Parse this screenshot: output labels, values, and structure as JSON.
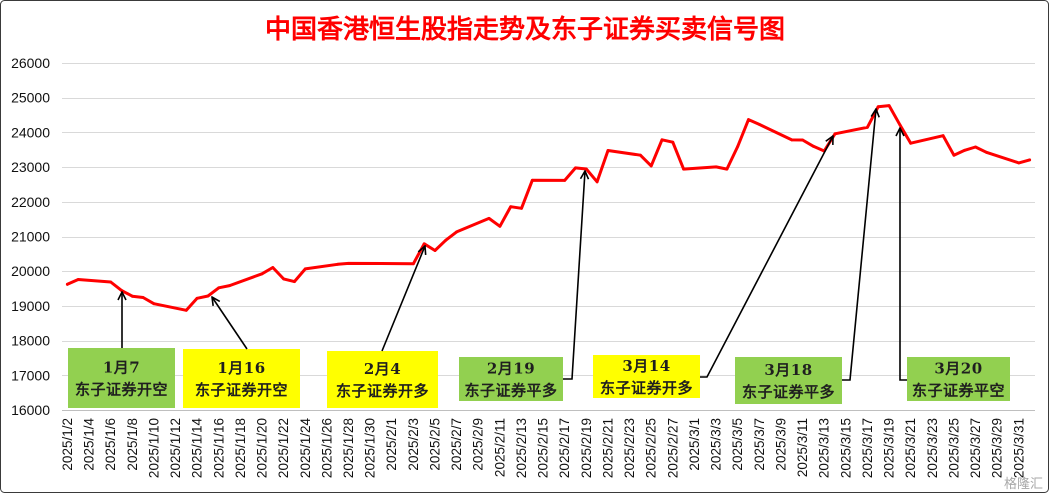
{
  "colors": {
    "title": "#FF0000",
    "grid": "#D9D9D9",
    "axis": "#BFBFBF",
    "signal_text": "#1F1F1F",
    "arrow": "#000000",
    "frame": "#3A3A3A"
  },
  "chart_data": {
    "type": "line",
    "title": "中国香港恒生股指走势及东子证券买卖信号图",
    "xlim": [
      "2025/1/2",
      "2025/4/1"
    ],
    "ylim": [
      16000,
      26000
    ],
    "grid": true,
    "y_ticks": [
      16000,
      17000,
      18000,
      19000,
      20000,
      21000,
      22000,
      23000,
      24000,
      25000,
      26000
    ],
    "x_tick_labels": [
      "2025/1/2",
      "2025/1/4",
      "2025/1/6",
      "2025/1/8",
      "2025/1/10",
      "2025/1/12",
      "2025/1/14",
      "2025/1/16",
      "2025/1/18",
      "2025/1/20",
      "2025/1/22",
      "2025/1/24",
      "2025/1/26",
      "2025/1/28",
      "2025/1/30",
      "2025/2/1",
      "2025/2/3",
      "2025/2/5",
      "2025/2/7",
      "2025/2/9",
      "2025/2/11",
      "2025/2/13",
      "2025/2/15",
      "2025/2/17",
      "2025/2/19",
      "2025/2/21",
      "2025/2/23",
      "2025/2/25",
      "2025/2/27",
      "2025/3/1",
      "2025/3/3",
      "2025/3/5",
      "2025/3/7",
      "2025/3/9",
      "2025/3/11",
      "2025/3/13",
      "2025/3/15",
      "2025/3/17",
      "2025/3/19",
      "2025/3/21",
      "2025/3/23",
      "2025/3/25",
      "2025/3/27",
      "2025/3/29",
      "2025/3/31"
    ],
    "series": [
      {
        "color": "#FF0000",
        "x": [
          "2025/1/2",
          "2025/1/3",
          "2025/1/6",
          "2025/1/7",
          "2025/1/8",
          "2025/1/9",
          "2025/1/10",
          "2025/1/13",
          "2025/1/14",
          "2025/1/15",
          "2025/1/16",
          "2025/1/17",
          "2025/1/20",
          "2025/1/21",
          "2025/1/22",
          "2025/1/23",
          "2025/1/24",
          "2025/1/27",
          "2025/1/28",
          "2025/2/3",
          "2025/2/4",
          "2025/2/5",
          "2025/2/6",
          "2025/2/7",
          "2025/2/10",
          "2025/2/11",
          "2025/2/12",
          "2025/2/13",
          "2025/2/14",
          "2025/2/17",
          "2025/2/18",
          "2025/2/19",
          "2025/2/20",
          "2025/2/21",
          "2025/2/24",
          "2025/2/25",
          "2025/2/26",
          "2025/2/27",
          "2025/2/28",
          "2025/3/3",
          "2025/3/4",
          "2025/3/5",
          "2025/3/6",
          "2025/3/7",
          "2025/3/10",
          "2025/3/11",
          "2025/3/12",
          "2025/3/13",
          "2025/3/14",
          "2025/3/17",
          "2025/3/18",
          "2025/3/19",
          "2025/3/20",
          "2025/3/21",
          "2025/3/24",
          "2025/3/25",
          "2025/3/26",
          "2025/3/27",
          "2025/3/28",
          "2025/3/31",
          "2025/4/1"
        ],
        "y": [
          19623,
          19760,
          19688,
          19448,
          19280,
          19241,
          19064,
          18874,
          19220,
          19286,
          19523,
          19584,
          19926,
          20107,
          19779,
          19701,
          20066,
          20198,
          20225,
          20217,
          20790,
          20597,
          20892,
          21134,
          21522,
          21295,
          21858,
          21814,
          22620,
          22616,
          22977,
          22944,
          22577,
          23478,
          23342,
          23034,
          23788,
          23718,
          22941,
          23006,
          22942,
          23594,
          24370,
          24231,
          23783,
          23782,
          23600,
          23463,
          23960,
          24146,
          24741,
          24771,
          24220,
          23690,
          23906,
          23344,
          23483,
          23579,
          23427,
          23120,
          23207
        ]
      }
    ],
    "annotations": [
      {
        "label": "1月7",
        "text": "东子证券开空",
        "color": "#92D050"
      },
      {
        "label": "1月16",
        "text": "东子证券开空",
        "color": "#FFFF00"
      },
      {
        "label": "2月4",
        "text": "东子证券开多",
        "color": "#FFFF00"
      },
      {
        "label": "2月19",
        "text": "东子证券平多",
        "color": "#92D050"
      },
      {
        "label": "3月14",
        "text": "东子证券开多",
        "color": "#FFFF00"
      },
      {
        "label": "3月18",
        "text": "东子证券平多",
        "color": "#92D050"
      },
      {
        "label": "3月20",
        "text": "东子证券平空",
        "color": "#92D050"
      }
    ]
  },
  "watermark": "格隆汇"
}
